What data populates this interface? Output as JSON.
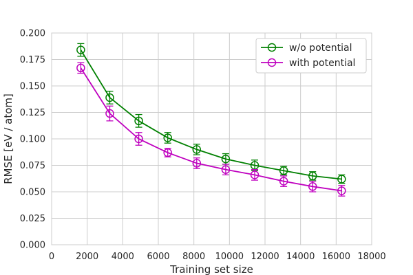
{
  "chart_data": {
    "type": "line",
    "xlabel": "Training set size",
    "ylabel": "RMSE [eV / atom]",
    "xlim": [
      0,
      18000
    ],
    "ylim": [
      0,
      0.2
    ],
    "xticks": [
      0,
      2000,
      4000,
      6000,
      8000,
      10000,
      12000,
      14000,
      16000,
      18000
    ],
    "yticks": [
      "0.000",
      "0.025",
      "0.050",
      "0.075",
      "0.100",
      "0.125",
      "0.150",
      "0.175",
      "0.200"
    ],
    "grid": true,
    "legend_position": "top-right",
    "series": [
      {
        "name": "w/o potential",
        "color": "#008000",
        "marker": "open-circle",
        "x": [
          1640,
          3270,
          4900,
          6530,
          8160,
          9790,
          11420,
          13050,
          14680,
          16310
        ],
        "y": [
          0.184,
          0.139,
          0.117,
          0.101,
          0.09,
          0.081,
          0.075,
          0.07,
          0.065,
          0.062
        ],
        "err": [
          0.006,
          0.006,
          0.006,
          0.005,
          0.005,
          0.005,
          0.005,
          0.004,
          0.004,
          0.004
        ]
      },
      {
        "name": "with potential",
        "color": "#bf00bf",
        "marker": "open-circle",
        "x": [
          1640,
          3270,
          4900,
          6530,
          8160,
          9790,
          11420,
          13050,
          14680,
          16310
        ],
        "y": [
          0.167,
          0.124,
          0.1,
          0.087,
          0.077,
          0.071,
          0.066,
          0.06,
          0.055,
          0.051
        ],
        "err": [
          0.005,
          0.007,
          0.006,
          0.004,
          0.005,
          0.005,
          0.005,
          0.005,
          0.005,
          0.005
        ]
      }
    ]
  }
}
